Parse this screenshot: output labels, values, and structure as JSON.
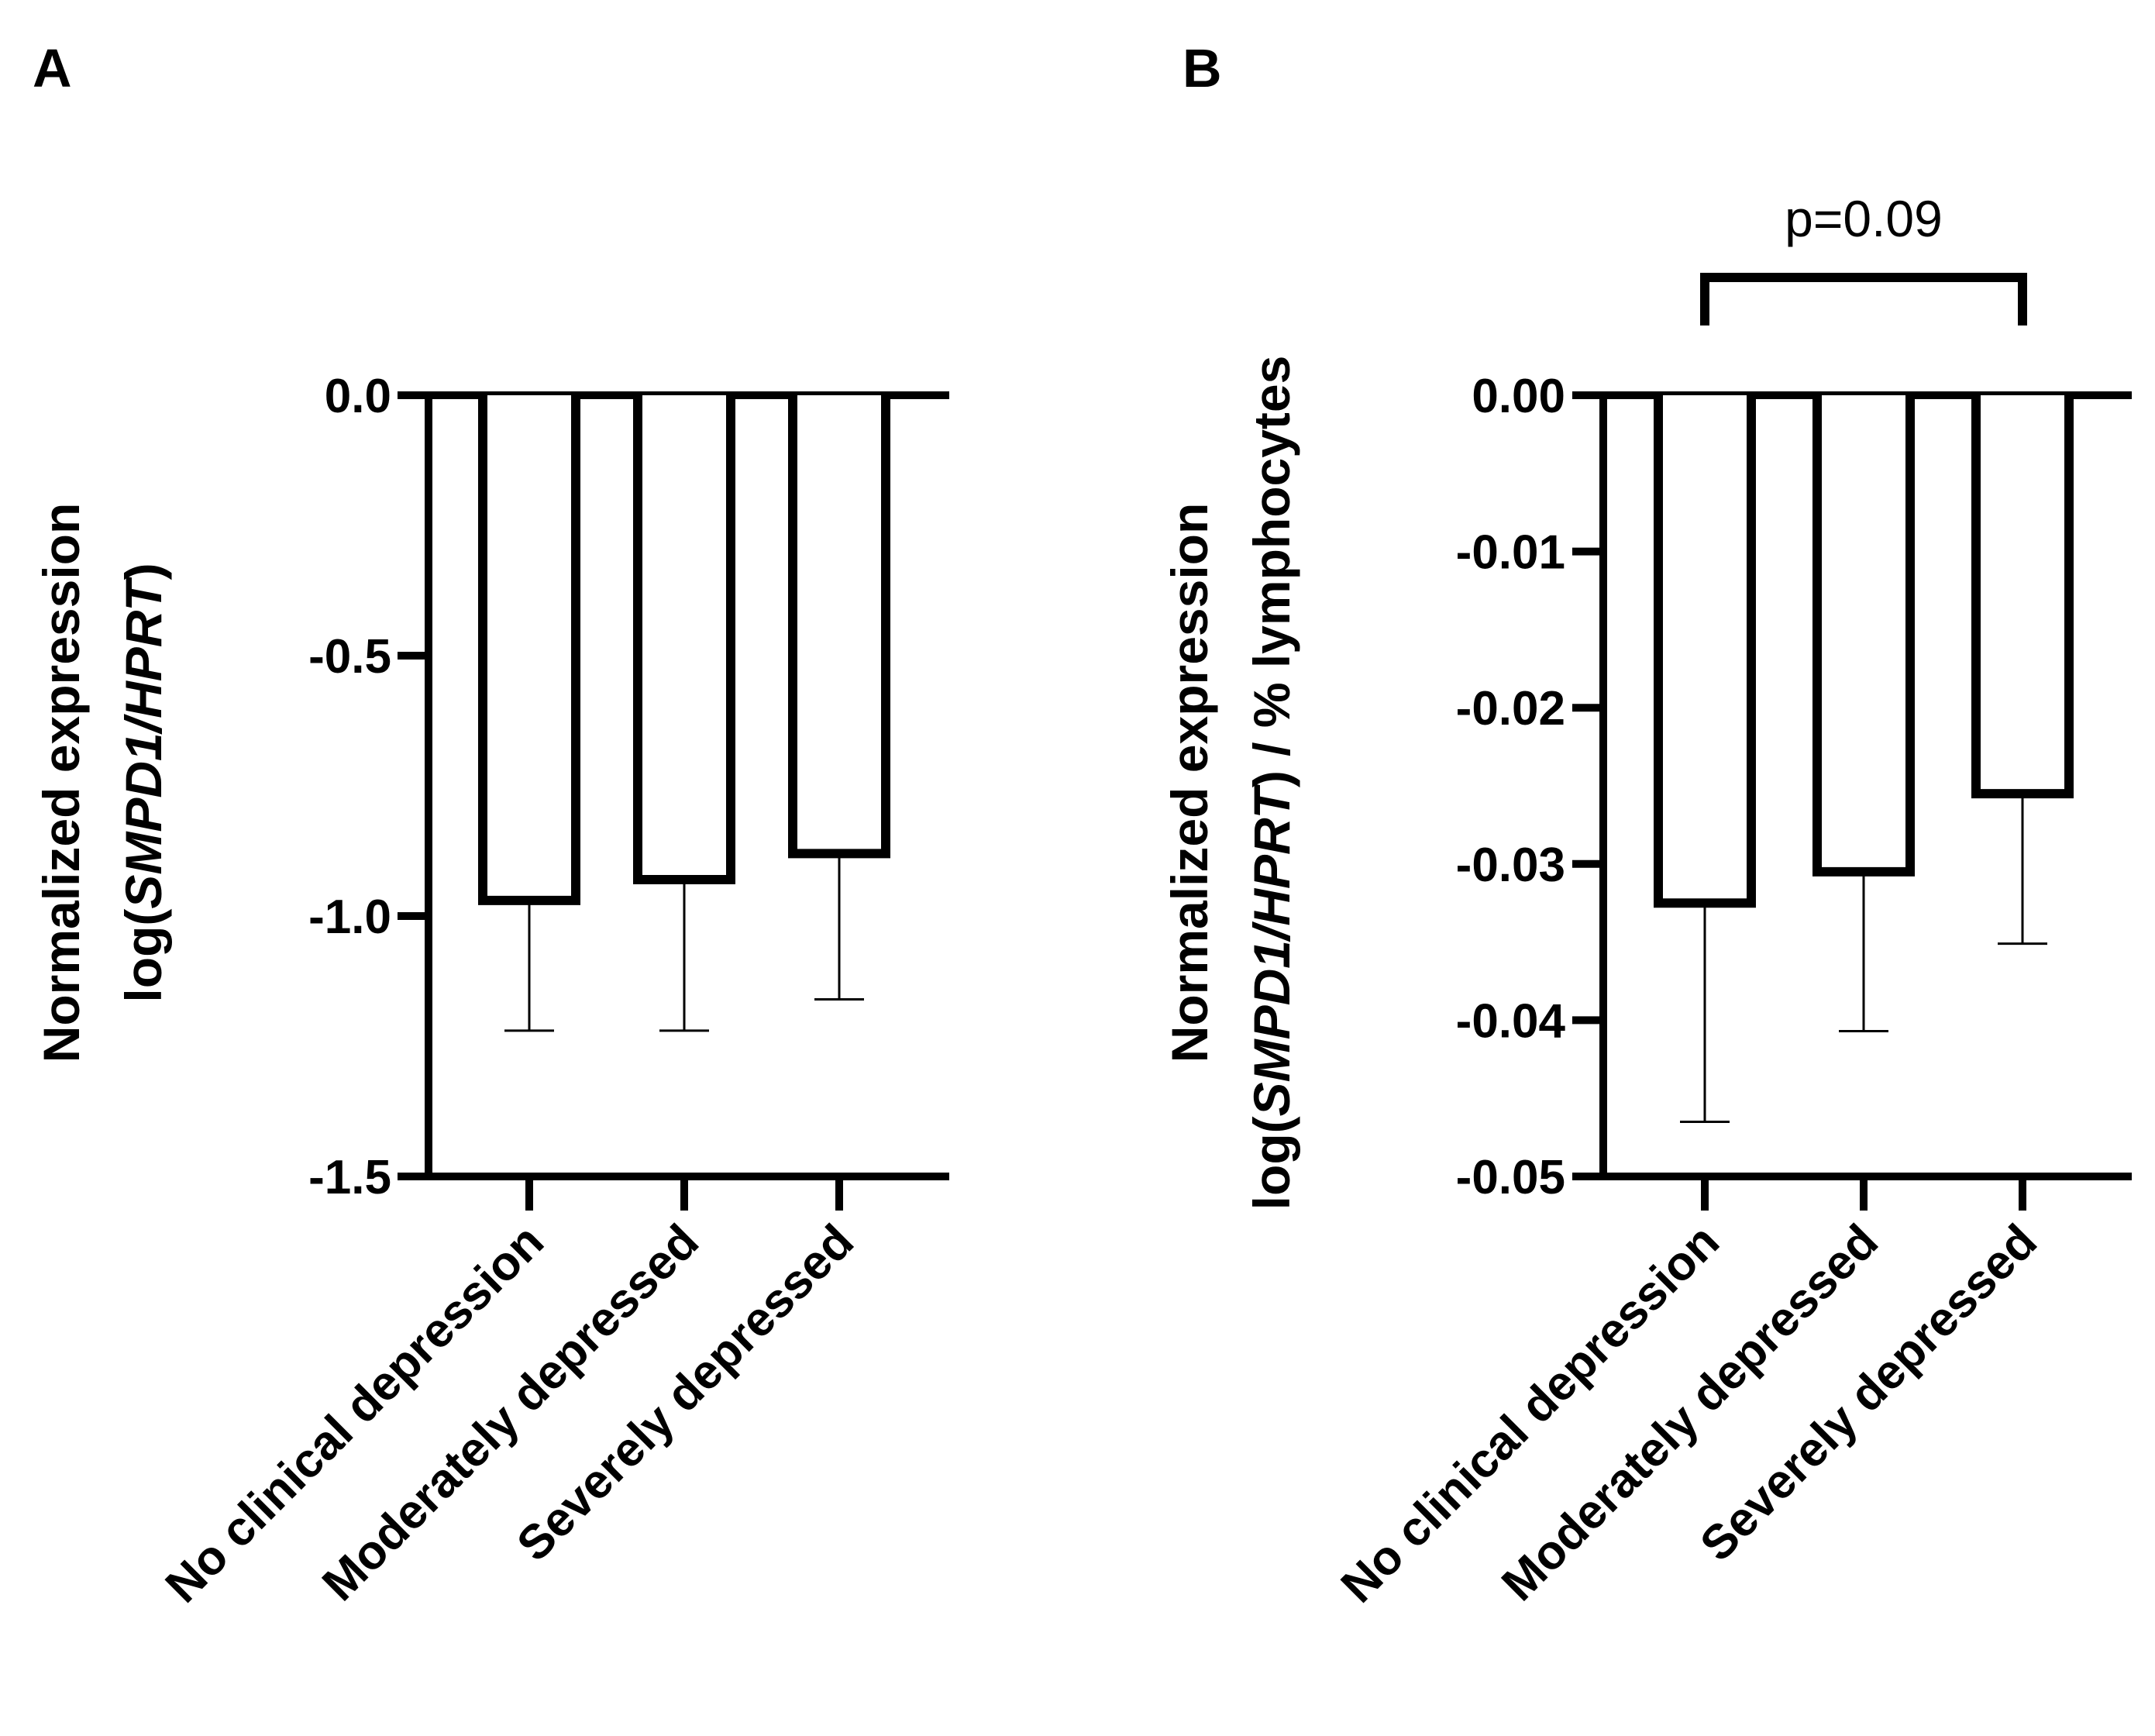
{
  "chart_data": [
    {
      "panel": "A",
      "type": "bar",
      "categories": [
        "No clinical depression",
        "Moderately depressed",
        "Severely depressed"
      ],
      "values": [
        -0.97,
        -0.93,
        -0.88
      ],
      "error_bars": [
        0.25,
        0.29,
        0.28
      ],
      "ylabel_line1": "Normalized expression",
      "ylabel_line2_prefix": "log(",
      "ylabel_line2_italic": "SMPD1/HPRT",
      "ylabel_line2_suffix": ")",
      "ylim": [
        -1.5,
        0.0
      ],
      "yticks": [
        0.0,
        -0.5,
        -1.0,
        -1.5
      ],
      "ytick_labels": [
        "0.0",
        "-0.5",
        "-1.0",
        "-1.5"
      ],
      "annotation": null
    },
    {
      "panel": "B",
      "type": "bar",
      "categories": [
        "No clinical depression",
        "Moderately depressed",
        "Severely depressed"
      ],
      "values": [
        -0.0325,
        -0.0305,
        -0.0255
      ],
      "error_bars": [
        0.014,
        0.0102,
        0.0096
      ],
      "ylabel_line1": "Normalized expression",
      "ylabel_line2_prefix": "log(",
      "ylabel_line2_italic": "SMPD1/HPRT",
      "ylabel_line2_suffix": ") / % lymphocytes",
      "ylim": [
        -0.05,
        0.0
      ],
      "yticks": [
        0.0,
        -0.01,
        -0.02,
        -0.03,
        -0.04,
        -0.05
      ],
      "ytick_labels": [
        "0.00",
        "-0.01",
        "-0.02",
        "-0.03",
        "-0.04",
        "-0.05"
      ],
      "annotation": {
        "text": "p=0.09",
        "from_category": 0,
        "to_category": 2
      }
    }
  ]
}
